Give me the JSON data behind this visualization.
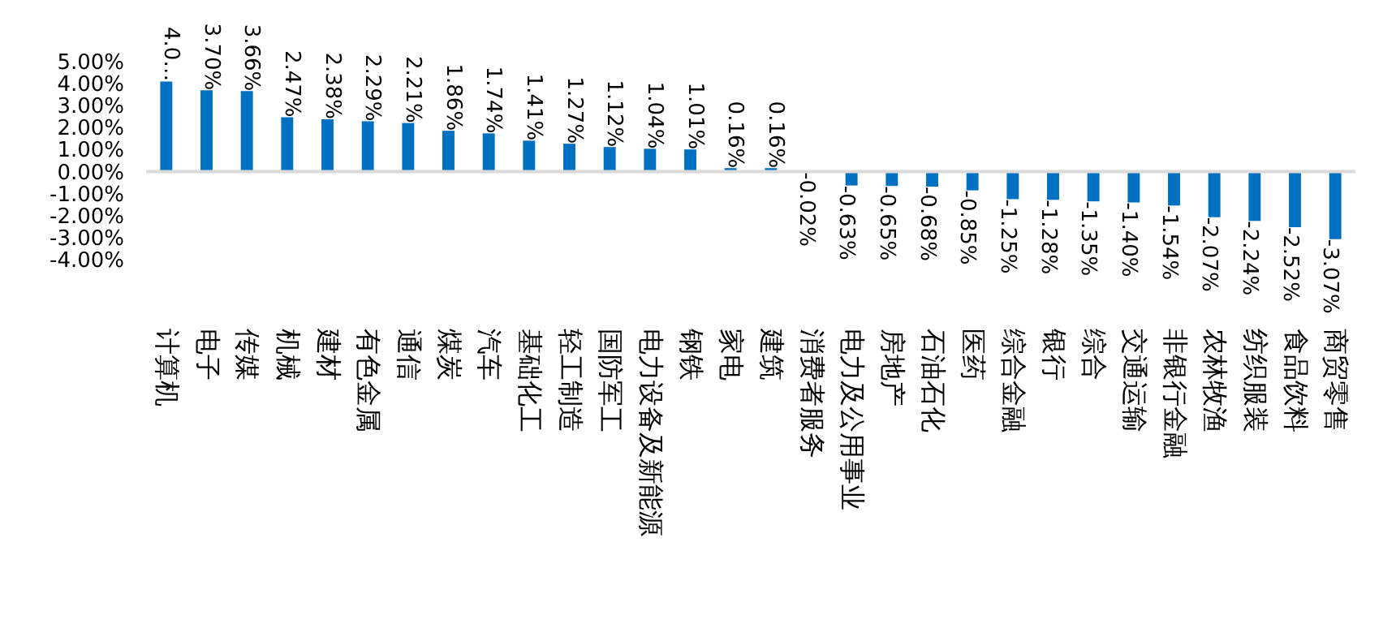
{
  "chart_data": {
    "type": "bar",
    "categories": [
      "计算机",
      "电子",
      "传媒",
      "机械",
      "建材",
      "有色金属",
      "通信",
      "煤炭",
      "汽车",
      "基础化工",
      "轻工制造",
      "国防军工",
      "电力设备及新能源",
      "钢铁",
      "家电",
      "建筑",
      "消费者服务",
      "电力及公用事业",
      "房地产",
      "石油石化",
      "医药",
      "综合金融",
      "银行",
      "综合",
      "交通运输",
      "非银行金融",
      "农林牧渔",
      "纺织服装",
      "食品饮料",
      "商贸零售"
    ],
    "values": [
      4.1,
      3.7,
      3.66,
      2.47,
      2.38,
      2.29,
      2.21,
      1.86,
      1.74,
      1.41,
      1.27,
      1.12,
      1.04,
      1.01,
      0.16,
      0.16,
      -0.02,
      -0.63,
      -0.65,
      -0.68,
      -0.85,
      -1.25,
      -1.28,
      -1.35,
      -1.4,
      -1.54,
      -2.07,
      -2.24,
      -2.52,
      -3.07
    ],
    "value_labels": [
      "4.0…",
      "3.70%",
      "3.66%",
      "2.47%",
      "2.38%",
      "2.29%",
      "2.21%",
      "1.86%",
      "1.74%",
      "1.41%",
      "1.27%",
      "1.12%",
      "1.04%",
      "1.01%",
      "0.16%",
      "0.16%",
      "-0.02%",
      "-0.63%",
      "-0.65%",
      "-0.68%",
      "-0.85%",
      "-1.25%",
      "-1.28%",
      "-1.35%",
      "-1.40%",
      "-1.54%",
      "-2.07%",
      "-2.24%",
      "-2.52%",
      "-3.07%"
    ],
    "color": "#0070c0",
    "ylim": [
      -4,
      5
    ],
    "yticks": [
      {
        "value": 5,
        "label": "5.00%"
      },
      {
        "value": 4,
        "label": "4.00%"
      },
      {
        "value": 3,
        "label": "3.00%"
      },
      {
        "value": 2,
        "label": "2.00%"
      },
      {
        "value": 1,
        "label": "1.00%"
      },
      {
        "value": 0,
        "label": "0.00%"
      },
      {
        "value": -1,
        "label": "-1.00%"
      },
      {
        "value": -2,
        "label": "-2.00%"
      },
      {
        "value": -3,
        "label": "-3.00%"
      },
      {
        "value": -4,
        "label": "-4.00%"
      }
    ],
    "ref_lines": [
      {
        "axis": "y",
        "value": 0,
        "color": "#d9d9d9"
      }
    ],
    "grid": false
  }
}
